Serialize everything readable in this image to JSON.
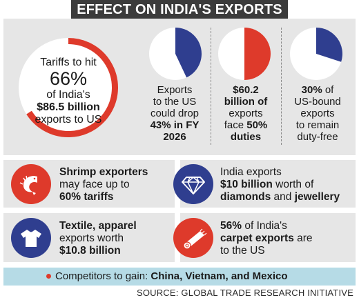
{
  "title": "EFFECT ON INDIA'S EXPORTS",
  "hero": {
    "line1": "Tariffs to hit",
    "percent": "66%",
    "line3": "of India's",
    "amount": "$86.5 billion",
    "line5": "exports to US",
    "ring_fraction": 0.66,
    "ring_color": "#de3a2b"
  },
  "pies": [
    {
      "fraction": 0.43,
      "color": "#2f3e8f",
      "lines": [
        {
          "text": "Exports",
          "bold": false
        },
        {
          "text": "to the US",
          "bold": false
        },
        {
          "text": "could drop",
          "bold": false
        },
        {
          "text": "43% in FY",
          "bold": true
        },
        {
          "text": "2026",
          "bold": true
        }
      ]
    },
    {
      "fraction": 0.5,
      "color": "#de3a2b",
      "lines": [
        {
          "text": "$60.2",
          "bold": true
        },
        {
          "text": "billion of",
          "bold": true
        },
        {
          "text": "exports",
          "bold": false
        },
        {
          "text": "face 50%",
          "bold": false
        },
        {
          "text": "duties",
          "bold": true
        }
      ]
    },
    {
      "fraction": 0.3,
      "color": "#2f3e8f",
      "lines": [
        {
          "text": "30% of",
          "bold": false
        },
        {
          "text": "US-bound",
          "bold": false
        },
        {
          "text": "exports",
          "bold": false
        },
        {
          "text": "to remain",
          "bold": false
        },
        {
          "text": "duty-free",
          "bold": false
        }
      ]
    }
  ],
  "cards": {
    "shrimp": {
      "icon": "shrimp-icon",
      "color": "#de3a2b",
      "bold1": "Shrimp exporters",
      "line2": "may face up to",
      "bold3": "60% tariffs"
    },
    "diamonds": {
      "icon": "diamond-icon",
      "color": "#2f3e8f",
      "line1": "India exports",
      "bold2a": "$10 billion",
      "line2b": " worth of",
      "bold3a": "diamonds",
      "line3b": " and ",
      "bold3c": "jewellery"
    },
    "textile": {
      "icon": "tshirt-icon",
      "color": "#2f3e8f",
      "bold1": "Textile, apparel",
      "line2": "exports worth",
      "bold3": "$10.8 billion"
    },
    "carpet": {
      "icon": "carpet-roll-icon",
      "color": "#de3a2b",
      "bold1a": "56%",
      "line1b": " of India's",
      "bold2a": "carpet exports",
      "line2b": " are",
      "line3": "to the US"
    }
  },
  "footer": {
    "label": "Competitors to gain: ",
    "countries": "China, Vietnam, and Mexico"
  },
  "source": "SOURCE: GLOBAL TRADE RESEARCH INITIATIVE"
}
